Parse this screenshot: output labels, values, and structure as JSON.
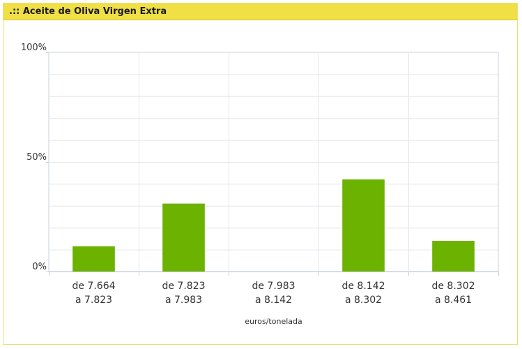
{
  "panel": {
    "title": ".:: Aceite de Oliva Virgen Extra"
  },
  "chart_data": {
    "type": "bar",
    "title": ".:: Aceite de Oliva Virgen Extra",
    "categories": [
      [
        "de 7.664",
        "a 7.823"
      ],
      [
        "de 7.823",
        "a 7.983"
      ],
      [
        "de 7.983",
        "a 8.142"
      ],
      [
        "de 8.142",
        "a 8.302"
      ],
      [
        "de 8.302",
        "a 8.461"
      ]
    ],
    "values": [
      11.5,
      31,
      0,
      42,
      14
    ],
    "xlabel": "euros/tonelada",
    "ylabel": "",
    "ylim": [
      0,
      100
    ],
    "yticks": [
      {
        "value": 0,
        "label": "0%"
      },
      {
        "value": 50,
        "label": "50%"
      },
      {
        "value": 100,
        "label": "100%"
      }
    ],
    "grid": true,
    "colors": {
      "bar": "#6cb200",
      "grid": "#e3e6ee",
      "axis": "#c9cfdc",
      "text": "#333333"
    }
  }
}
